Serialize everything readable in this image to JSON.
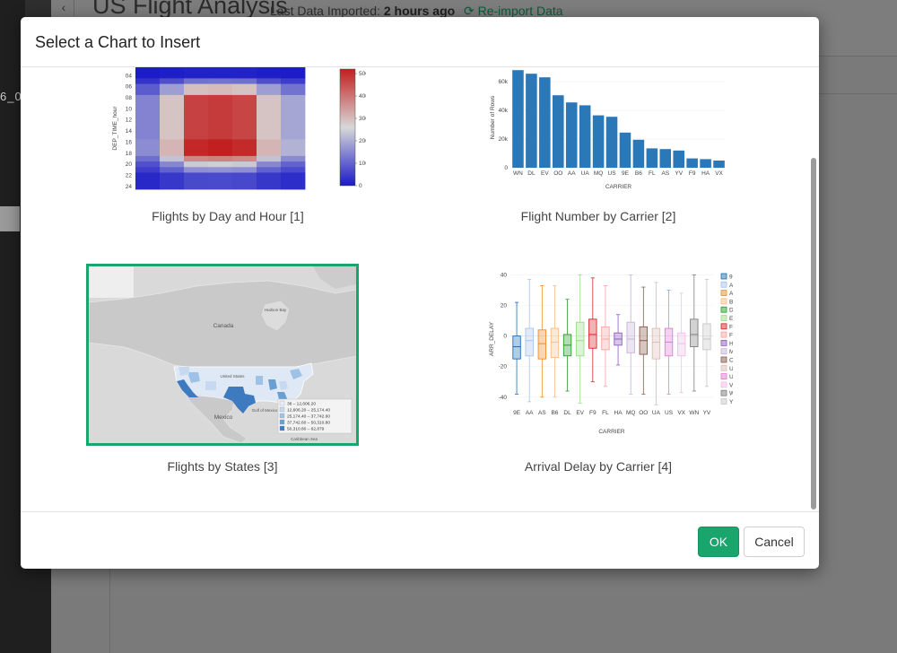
{
  "app": {
    "back_glyph": "‹",
    "title": "US Flight Analysis",
    "import_prefix": "Last Data Imported:",
    "import_time": "2 hours ago",
    "reimport_label": "Re-import Data",
    "left_fragment": "6_09"
  },
  "modal": {
    "title": "Select a Chart to Insert",
    "ok_label": "OK",
    "cancel_label": "Cancel"
  },
  "cards": [
    {
      "label": "Flights by Day and Hour [1]",
      "selected": false
    },
    {
      "label": "Flight Number by Carrier [2]",
      "selected": false
    },
    {
      "label": "Flights by States [3]",
      "selected": true
    },
    {
      "label": "Arrival Delay by Carrier [4]",
      "selected": false
    }
  ],
  "chart_data": [
    {
      "type": "heatmap",
      "ylabel": "DEP_TIME_hour",
      "y_ticks": [
        "04",
        "06",
        "08",
        "10",
        "12",
        "14",
        "16",
        "18",
        "20",
        "22",
        "24"
      ],
      "colorbar_ticks": [
        0,
        1000,
        2000,
        3000,
        4000,
        5000
      ],
      "colors": {
        "low": "#1a1ac8",
        "mid": "#d8d8d8",
        "high": "#c21f1f"
      }
    },
    {
      "type": "bar",
      "xlabel": "CARRIER",
      "ylabel": "Number of Rows",
      "categories": [
        "WN",
        "DL",
        "EV",
        "OO",
        "AA",
        "UA",
        "MQ",
        "US",
        "9E",
        "B6",
        "FL",
        "AS",
        "YV",
        "F9",
        "HA",
        "VX"
      ],
      "values": [
        68000,
        65500,
        63000,
        50500,
        45500,
        43500,
        36500,
        35500,
        24500,
        19500,
        13500,
        13000,
        12000,
        6500,
        6000,
        5000
      ],
      "y_ticks": [
        "0",
        "20k",
        "40k",
        "60k"
      ],
      "ylim": [
        0,
        70000
      ],
      "color": "#2a78b8"
    },
    {
      "type": "map",
      "map_labels": [
        "Canada",
        "Hudson Bay",
        "United States",
        "Mexico",
        "Gulf of Mexico",
        "Caribbean Sea"
      ],
      "legend": [
        {
          "label": "38 – 12,606.20",
          "color": "#e8eef8"
        },
        {
          "label": "12,606.20 – 25,174.40",
          "color": "#c6d9f0"
        },
        {
          "label": "25,174.40 – 37,742.60",
          "color": "#9ec2e6"
        },
        {
          "label": "37,742.60 – 50,310.80",
          "color": "#6a9fd4"
        },
        {
          "label": "50,310.80 – 62,879",
          "color": "#3d7ac0"
        }
      ]
    },
    {
      "type": "box",
      "xlabel": "CARRIER",
      "ylabel": "ARR_DELAY",
      "categories": [
        "9E",
        "AA",
        "AS",
        "B6",
        "DL",
        "EV",
        "F9",
        "FL",
        "HA",
        "MQ",
        "OO",
        "UA",
        "US",
        "VX",
        "WN",
        "YV"
      ],
      "y_ticks": [
        -40,
        -20,
        0,
        20,
        40
      ],
      "ylim": [
        -46,
        42
      ],
      "series": [
        {
          "name": "9E",
          "color": "#1f6fb4",
          "min": -38,
          "q1": -15,
          "median": -7,
          "q3": 0,
          "max": 22
        },
        {
          "name": "AA",
          "color": "#a9c4e8",
          "min": -43,
          "q1": -13,
          "median": -3,
          "q3": 5,
          "max": 37
        },
        {
          "name": "AS",
          "color": "#f28c28",
          "min": -40,
          "q1": -15,
          "median": -5,
          "q3": 4,
          "max": 33
        },
        {
          "name": "B6",
          "color": "#f6bf8a",
          "min": -40,
          "q1": -14,
          "median": -4,
          "q3": 5,
          "max": 33
        },
        {
          "name": "DL",
          "color": "#2d9a2d",
          "min": -36,
          "q1": -13,
          "median": -6,
          "q3": 1,
          "max": 24
        },
        {
          "name": "EV",
          "color": "#9bde8a",
          "min": -44,
          "q1": -13,
          "median": -3,
          "q3": 9,
          "max": 40
        },
        {
          "name": "F9",
          "color": "#d62728",
          "min": -30,
          "q1": -8,
          "median": 1,
          "q3": 11,
          "max": 38
        },
        {
          "name": "FL",
          "color": "#f7a3a3",
          "min": -33,
          "q1": -9,
          "median": -2,
          "q3": 6,
          "max": 33
        },
        {
          "name": "HA",
          "color": "#8c5cbf",
          "min": -19,
          "q1": -6,
          "median": -2,
          "q3": 2,
          "max": 14
        },
        {
          "name": "MQ",
          "color": "#c7b3db",
          "min": -38,
          "q1": -11,
          "median": -2,
          "q3": 9,
          "max": 40
        },
        {
          "name": "OO",
          "color": "#8a5a4d",
          "min": -38,
          "q1": -12,
          "median": -3,
          "q3": 6,
          "max": 32
        },
        {
          "name": "UA",
          "color": "#dcbdb5",
          "min": -45,
          "q1": -15,
          "median": -4,
          "q3": 5,
          "max": 35
        },
        {
          "name": "US",
          "color": "#e27bd0",
          "min": -38,
          "q1": -13,
          "median": -4,
          "q3": 5,
          "max": 30
        },
        {
          "name": "VX",
          "color": "#f3bde6",
          "min": -37,
          "q1": -13,
          "median": -5,
          "q3": 2,
          "max": 28
        },
        {
          "name": "WN",
          "color": "#7f7f7f",
          "min": -36,
          "q1": -7,
          "median": 1,
          "q3": 11,
          "max": 40
        },
        {
          "name": "YV",
          "color": "#c7c7c7",
          "min": -33,
          "q1": -9,
          "median": -2,
          "q3": 8,
          "max": 37
        }
      ]
    }
  ]
}
